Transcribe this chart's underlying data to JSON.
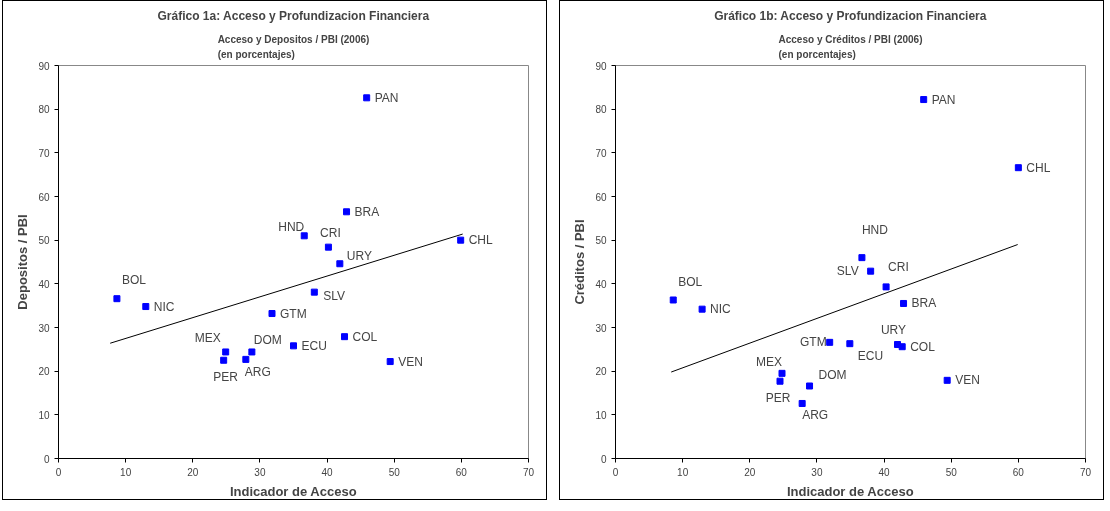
{
  "chart_data": [
    {
      "type": "scatter",
      "title": "Gráfico 1a: Acceso y Profundizacion Financiera",
      "subtitle": "Acceso y Depositos / PBI (2006)\n(en porcentajes)",
      "xlabel": "Indicador de Acceso",
      "ylabel": "Depositos / PBI",
      "xlim": [
        0,
        70
      ],
      "ylim": [
        0,
        90
      ],
      "xticks": [
        0,
        10,
        20,
        30,
        40,
        50,
        60,
        70
      ],
      "yticks": [
        0,
        10,
        20,
        30,
        40,
        50,
        60,
        70,
        80,
        90
      ],
      "grid": false,
      "series": [
        {
          "marker": "square",
          "color": "#0000ff",
          "x": [
            45.9,
            42.9,
            36.6,
            40.2,
            41.9,
            59.9,
            8.7,
            13.0,
            38.1,
            31.8,
            42.6,
            35.0,
            24.9,
            28.8,
            24.6,
            27.9,
            49.4
          ],
          "values": [
            82.6,
            56.5,
            51.0,
            48.4,
            44.6,
            50.0,
            36.6,
            34.8,
            38.1,
            33.2,
            27.9,
            25.8,
            24.4,
            24.4,
            22.5,
            22.7,
            22.2
          ]
        },
        {
          "type": "line",
          "color": "#000000",
          "x": [
            7.7,
            60.2
          ],
          "values": [
            26.4,
            51.4
          ]
        }
      ],
      "annotations": [
        {
          "text": "PAN",
          "x": 45.9,
          "y": 82.6
        },
        {
          "text": "BRA",
          "x": 42.9,
          "y": 56.5
        },
        {
          "text": "HND",
          "x": 36.6,
          "y": 51.0
        },
        {
          "text": "CRI",
          "x": 40.2,
          "y": 48.4
        },
        {
          "text": "URY",
          "x": 41.9,
          "y": 44.6
        },
        {
          "text": "CHL",
          "x": 59.9,
          "y": 50.0
        },
        {
          "text": "BOL",
          "x": 8.7,
          "y": 36.6
        },
        {
          "text": "NIC",
          "x": 13.0,
          "y": 34.8
        },
        {
          "text": "SLV",
          "x": 38.1,
          "y": 38.1
        },
        {
          "text": "GTM",
          "x": 31.8,
          "y": 33.2
        },
        {
          "text": "COL",
          "x": 42.6,
          "y": 27.9
        },
        {
          "text": "ECU",
          "x": 35.0,
          "y": 25.8
        },
        {
          "text": "MEX",
          "x": 24.9,
          "y": 24.4
        },
        {
          "text": "DOM",
          "x": 28.8,
          "y": 24.4
        },
        {
          "text": "PER",
          "x": 24.6,
          "y": 22.5
        },
        {
          "text": "ARG",
          "x": 27.9,
          "y": 22.7
        },
        {
          "text": "VEN",
          "x": 49.4,
          "y": 22.2
        }
      ]
    },
    {
      "type": "scatter",
      "title": "Gráfico 1b: Acceso y Profundizacion Financiera",
      "subtitle": "Acceso y Créditos / PBI (2006)\n(en porcentajes)",
      "xlabel": "Indicador de Acceso",
      "ylabel": "Créditos / PBI",
      "xlim": [
        0,
        70
      ],
      "ylim": [
        0,
        90
      ],
      "xticks": [
        0,
        10,
        20,
        30,
        40,
        50,
        60,
        70
      ],
      "yticks": [
        0,
        10,
        20,
        30,
        40,
        50,
        60,
        70,
        80,
        90
      ],
      "grid": false,
      "series": [
        {
          "marker": "square",
          "color": "#0000ff",
          "x": [
            45.9,
            60.0,
            36.7,
            38.0,
            40.3,
            42.9,
            8.6,
            12.9,
            31.9,
            34.9,
            42.0,
            42.7,
            24.8,
            24.5,
            28.9,
            27.8,
            49.4
          ],
          "values": [
            82.2,
            66.6,
            46.0,
            42.9,
            39.3,
            35.5,
            36.3,
            34.2,
            26.6,
            26.3,
            26.1,
            25.6,
            19.5,
            17.7,
            16.6,
            12.6,
            17.9
          ]
        },
        {
          "type": "line",
          "color": "#000000",
          "x": [
            8.3,
            59.9
          ],
          "values": [
            19.8,
            49.0
          ]
        }
      ],
      "annotations": [
        {
          "text": "PAN",
          "x": 45.9,
          "y": 82.2
        },
        {
          "text": "CHL",
          "x": 60.0,
          "y": 66.6
        },
        {
          "text": "HND",
          "x": 36.7,
          "y": 46.0
        },
        {
          "text": "SLV",
          "x": 38.0,
          "y": 42.9
        },
        {
          "text": "CRI",
          "x": 40.3,
          "y": 39.3
        },
        {
          "text": "BRA",
          "x": 42.9,
          "y": 35.5
        },
        {
          "text": "BOL",
          "x": 8.6,
          "y": 36.3
        },
        {
          "text": "NIC",
          "x": 12.9,
          "y": 34.2
        },
        {
          "text": "GTM",
          "x": 31.9,
          "y": 26.6
        },
        {
          "text": "ECU",
          "x": 34.9,
          "y": 26.3
        },
        {
          "text": "URY",
          "x": 42.0,
          "y": 26.1
        },
        {
          "text": "COL",
          "x": 42.7,
          "y": 25.6
        },
        {
          "text": "MEX",
          "x": 24.8,
          "y": 19.5
        },
        {
          "text": "PER",
          "x": 24.5,
          "y": 17.7
        },
        {
          "text": "DOM",
          "x": 28.9,
          "y": 16.6
        },
        {
          "text": "ARG",
          "x": 27.8,
          "y": 12.6
        },
        {
          "text": "VEN",
          "x": 49.4,
          "y": 17.9
        }
      ]
    }
  ]
}
